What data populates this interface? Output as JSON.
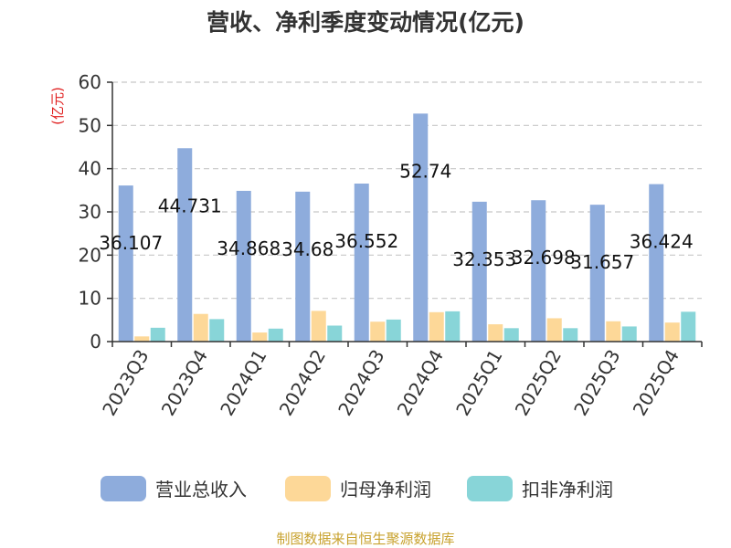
{
  "chart_data": {
    "type": "bar",
    "title": "营收、净利季度变动情况(亿元)",
    "ylabel": "(亿元)",
    "ylim": [
      0,
      60
    ],
    "yticks": [
      0,
      10,
      20,
      30,
      40,
      50,
      60
    ],
    "grid": true,
    "legend_position": "bottom",
    "categories": [
      "2023Q3",
      "2023Q4",
      "2024Q1",
      "2024Q2",
      "2024Q3",
      "2024Q4",
      "2025Q1",
      "2025Q2",
      "2025Q3",
      "2025Q4"
    ],
    "series": [
      {
        "name": "营业总收入",
        "color": "#8eacdc",
        "values": [
          36.107,
          44.731,
          34.868,
          34.68,
          36.552,
          52.74,
          32.353,
          32.698,
          31.657,
          36.424
        ],
        "data_labels": [
          "36.107",
          "44.731",
          "34.868",
          "34.68",
          "36.552",
          "52.74",
          "32.353",
          "32.698",
          "31.657",
          "36.424"
        ]
      },
      {
        "name": "归母净利润",
        "color": "#fdd898",
        "values": [
          1.2,
          6.4,
          2.1,
          7.1,
          4.6,
          6.8,
          4.0,
          5.4,
          4.7,
          4.4
        ]
      },
      {
        "name": "扣非净利润",
        "color": "#88d5d8",
        "values": [
          3.2,
          5.2,
          3.0,
          3.7,
          5.1,
          7.0,
          3.1,
          3.1,
          3.5,
          6.9
        ]
      }
    ],
    "source": "制图数据来自恒生聚源数据库"
  }
}
